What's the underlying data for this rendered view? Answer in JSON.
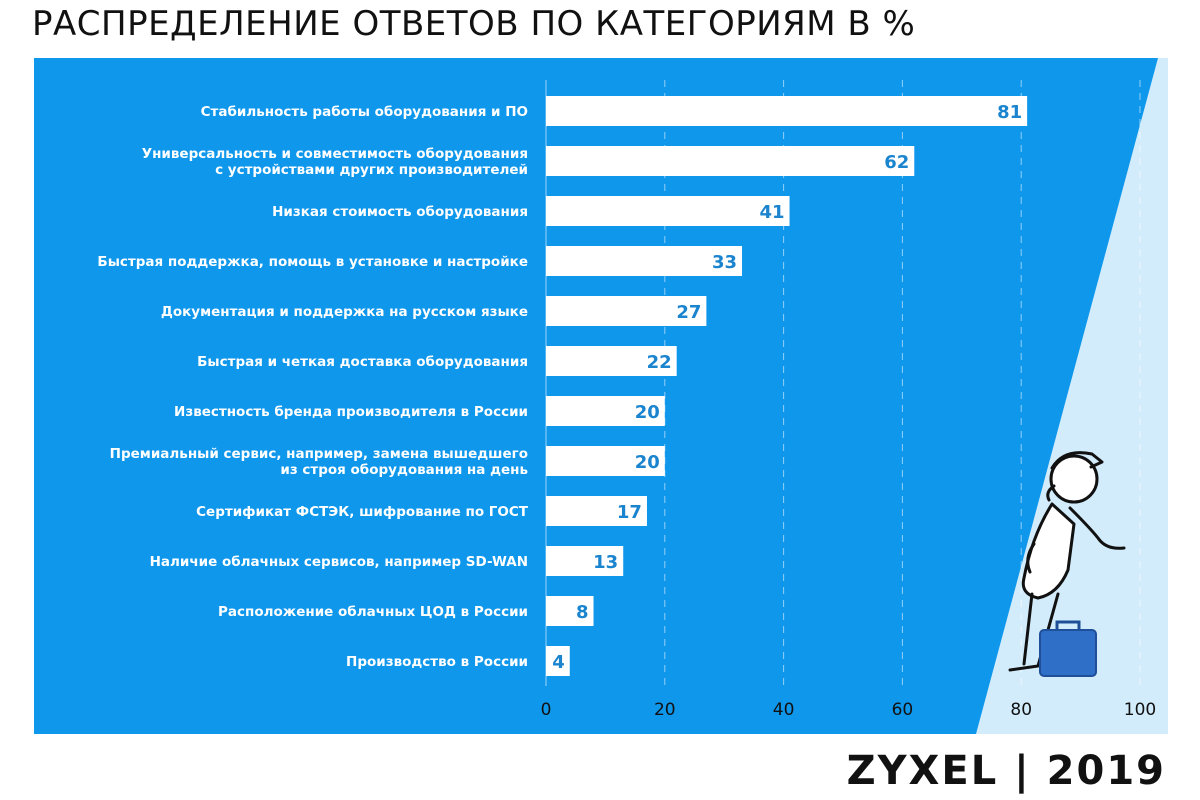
{
  "header": {
    "title": "РАСПРЕДЕЛЕНИЕ ОТВЕТОВ ПО КАТЕГОРИЯМ В %"
  },
  "footer": {
    "brand": "ZYXEL",
    "separator": "|",
    "year": "2019"
  },
  "colors": {
    "panel": "#0f97ec",
    "accent_light": "#d2ecfb",
    "bar": "#ffffff",
    "value_text": "#1a84cf",
    "label_text": "#ffffff",
    "axis_text": "#111111",
    "briefcase": "#2f6fc7"
  },
  "illustration": {
    "icon": "person-with-briefcase-icon"
  },
  "chart_data": {
    "type": "bar",
    "orientation": "horizontal",
    "title": "РАСПРЕДЕЛЕНИЕ ОТВЕТОВ ПО КАТЕГОРИЯМ В %",
    "xlabel": "",
    "ylabel": "",
    "xlim": [
      0,
      100
    ],
    "xticks": [
      "0",
      "20",
      "40",
      "60",
      "80",
      "100"
    ],
    "grid": true,
    "categories": [
      [
        "Стабильность работы оборудования и ПО"
      ],
      [
        "Универсальность и совместимость оборудования",
        "с устройствами других производителей"
      ],
      [
        "Низкая стоимость оборудования"
      ],
      [
        "Быстрая поддержка, помощь в установке и настройке"
      ],
      [
        "Документация и поддержка на русском языке"
      ],
      [
        "Быстрая и четкая доставка оборудования"
      ],
      [
        "Известность бренда производителя в России"
      ],
      [
        "Премиальный сервис, например, замена вышедшего",
        "из строя оборудования на день"
      ],
      [
        "Сертификат ФСТЭК, шифрование по ГОСТ"
      ],
      [
        "Наличие облачных сервисов, например SD-WAN"
      ],
      [
        "Расположение облачных ЦОД в России"
      ],
      [
        "Производство в России"
      ]
    ],
    "values": [
      81,
      62,
      41,
      33,
      27,
      22,
      20,
      20,
      17,
      13,
      8,
      4
    ]
  }
}
